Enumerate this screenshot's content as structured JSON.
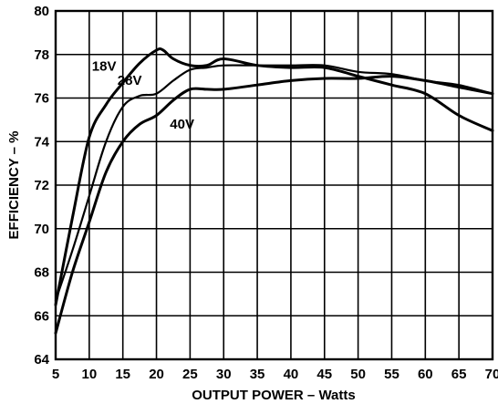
{
  "chart_data": {
    "type": "line",
    "title": "",
    "xlabel": "OUTPUT POWER – Watts",
    "ylabel": "EFFICIENCY – %",
    "xlim": [
      5,
      70
    ],
    "ylim": [
      64,
      80
    ],
    "xticks": [
      5,
      10,
      15,
      20,
      25,
      30,
      35,
      40,
      45,
      50,
      55,
      60,
      65,
      70
    ],
    "yticks": [
      64,
      66,
      68,
      70,
      72,
      74,
      76,
      78,
      80
    ],
    "grid": true,
    "legend": "inline labels",
    "series": [
      {
        "name": "18V",
        "x": [
          5,
          7.5,
          10,
          12.5,
          15,
          17.5,
          20,
          21,
          22.5,
          25,
          27.5,
          30,
          35,
          40,
          45,
          50,
          55,
          60,
          65,
          70
        ],
        "y": [
          66.5,
          70.5,
          74.2,
          75.7,
          76.7,
          77.6,
          78.2,
          78.2,
          77.8,
          77.5,
          77.5,
          77.8,
          77.5,
          77.4,
          77.4,
          77.0,
          76.6,
          76.2,
          75.2,
          74.5
        ]
      },
      {
        "name": "28V",
        "x": [
          5,
          7.5,
          10,
          12.5,
          15,
          17.5,
          20,
          22.5,
          25,
          27.5,
          30,
          35,
          40,
          45,
          50,
          55,
          60,
          65,
          70
        ],
        "y": [
          66.7,
          69.0,
          71.5,
          74.0,
          75.6,
          76.1,
          76.2,
          76.8,
          77.3,
          77.4,
          77.5,
          77.5,
          77.5,
          77.5,
          77.2,
          77.1,
          76.8,
          76.6,
          76.2
        ]
      },
      {
        "name": "40V",
        "x": [
          5,
          7.5,
          10,
          12.5,
          15,
          17.5,
          20,
          22.5,
          25,
          27.5,
          30,
          35,
          40,
          45,
          50,
          55,
          60,
          65,
          70
        ],
        "y": [
          65.2,
          68.0,
          70.3,
          72.6,
          74.0,
          74.8,
          75.2,
          75.9,
          76.4,
          76.4,
          76.4,
          76.6,
          76.8,
          76.9,
          76.9,
          77.0,
          76.8,
          76.5,
          76.2
        ]
      }
    ],
    "series_labels": [
      {
        "text": "18V",
        "x": 10.4,
        "y": 77.25
      },
      {
        "text": "28V",
        "x": 14.2,
        "y": 76.6
      },
      {
        "text": "40V",
        "x": 22.0,
        "y": 74.6
      }
    ]
  }
}
